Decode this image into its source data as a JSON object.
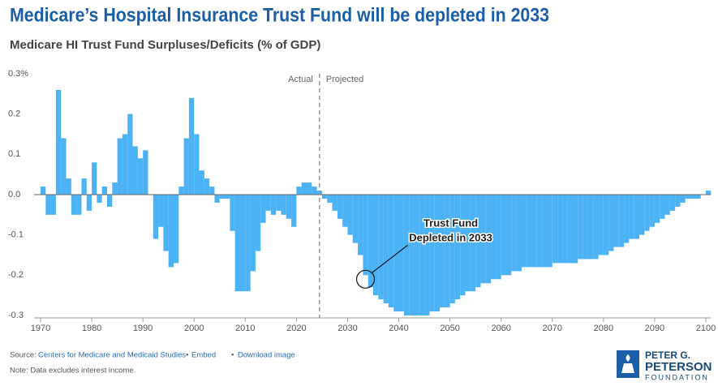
{
  "chart_data": {
    "type": "bar",
    "title": "Medicare’s Hospital Insurance Trust Fund will be depleted in 2033",
    "subtitle": "Medicare HI Trust Fund Surpluses/Deficits (% of GDP)",
    "x": [
      1970,
      1971,
      1972,
      1973,
      1974,
      1975,
      1976,
      1977,
      1978,
      1979,
      1980,
      1981,
      1982,
      1983,
      1984,
      1985,
      1986,
      1987,
      1988,
      1989,
      1990,
      1991,
      1992,
      1993,
      1994,
      1995,
      1996,
      1997,
      1998,
      1999,
      2000,
      2001,
      2002,
      2003,
      2004,
      2005,
      2006,
      2007,
      2008,
      2009,
      2010,
      2011,
      2012,
      2013,
      2014,
      2015,
      2016,
      2017,
      2018,
      2019,
      2020,
      2021,
      2022,
      2023,
      2024,
      2025,
      2026,
      2027,
      2028,
      2029,
      2030,
      2031,
      2032,
      2033,
      2034,
      2035,
      2036,
      2037,
      2038,
      2039,
      2040,
      2041,
      2042,
      2043,
      2044,
      2045,
      2046,
      2047,
      2048,
      2049,
      2050,
      2051,
      2052,
      2053,
      2054,
      2055,
      2056,
      2057,
      2058,
      2059,
      2060,
      2061,
      2062,
      2063,
      2064,
      2065,
      2066,
      2067,
      2068,
      2069,
      2070,
      2071,
      2072,
      2073,
      2074,
      2075,
      2076,
      2077,
      2078,
      2079,
      2080,
      2081,
      2082,
      2083,
      2084,
      2085,
      2086,
      2087,
      2088,
      2089,
      2090,
      2091,
      2092,
      2093,
      2094,
      2095,
      2096,
      2097,
      2098,
      2099,
      2100
    ],
    "values": [
      0.02,
      -0.05,
      -0.05,
      0.26,
      0.14,
      0.04,
      -0.05,
      -0.05,
      0.04,
      -0.04,
      0.08,
      -0.02,
      0.02,
      -0.03,
      0.03,
      0.14,
      0.15,
      0.2,
      0.12,
      0.09,
      0.11,
      0.0,
      -0.11,
      -0.08,
      -0.14,
      -0.18,
      -0.17,
      0.02,
      0.14,
      0.24,
      0.15,
      0.06,
      0.04,
      0.02,
      -0.02,
      -0.01,
      -0.01,
      -0.09,
      -0.24,
      -0.24,
      -0.24,
      -0.19,
      -0.14,
      -0.07,
      -0.04,
      -0.05,
      -0.04,
      -0.05,
      -0.06,
      -0.08,
      0.02,
      0.03,
      0.03,
      0.02,
      0.01,
      -0.01,
      -0.02,
      -0.04,
      -0.06,
      -0.08,
      -0.1,
      -0.12,
      -0.15,
      -0.2,
      -0.23,
      -0.25,
      -0.26,
      -0.27,
      -0.28,
      -0.29,
      -0.29,
      -0.3,
      -0.3,
      -0.3,
      -0.3,
      -0.3,
      -0.29,
      -0.29,
      -0.28,
      -0.28,
      -0.27,
      -0.26,
      -0.25,
      -0.24,
      -0.24,
      -0.23,
      -0.22,
      -0.22,
      -0.21,
      -0.21,
      -0.2,
      -0.2,
      -0.19,
      -0.19,
      -0.18,
      -0.18,
      -0.18,
      -0.18,
      -0.18,
      -0.18,
      -0.17,
      -0.17,
      -0.17,
      -0.17,
      -0.17,
      -0.16,
      -0.16,
      -0.16,
      -0.16,
      -0.15,
      -0.15,
      -0.14,
      -0.13,
      -0.13,
      -0.12,
      -0.11,
      -0.11,
      -0.1,
      -0.09,
      -0.08,
      -0.07,
      -0.06,
      -0.05,
      -0.04,
      -0.03,
      -0.02,
      -0.01,
      -0.01,
      -0.01,
      0.0,
      0.01
    ],
    "color": "#4cb2f6",
    "xlim": [
      1970,
      2100
    ],
    "xticks": [
      1970,
      1980,
      1990,
      2000,
      2010,
      2020,
      2030,
      2040,
      2050,
      2060,
      2070,
      2080,
      2090,
      2100
    ],
    "ylim": [
      -0.3,
      0.3
    ],
    "yticks": [
      {
        "value": 0.3,
        "label": "0.3%"
      },
      0.2,
      0.1,
      {
        "value": 0,
        "label": "0.0"
      },
      -0.1,
      -0.2,
      -0.3
    ],
    "grid": false,
    "divider": {
      "x": 2024.5,
      "left_label": "Actual",
      "right_label": "Projected"
    },
    "callout": {
      "lines": [
        "Trust Fund",
        "Depleted in 2033"
      ],
      "x": 2033,
      "y": -0.21
    }
  },
  "footer": {
    "source_prefix": "Source:",
    "source": "Centers for Medicare and Medicaid Studies",
    "embed": "Embed",
    "download": "Download image",
    "note": "Note: Data excludes interest income.",
    "logo": [
      "PETER G.",
      "PETERSON",
      "FOUNDATION"
    ]
  }
}
